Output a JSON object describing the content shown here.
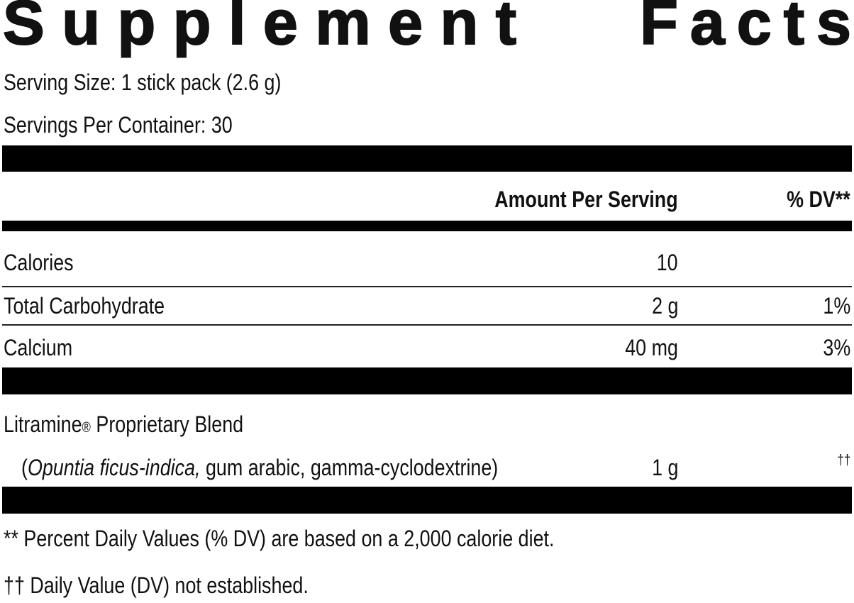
{
  "title": {
    "word1": "Supplement",
    "word2": "Facts"
  },
  "serving_size": "Serving Size: 1 stick pack (2.6 g)",
  "servings_per_container": "Servings Per Container: 30",
  "header": {
    "amount": "Amount Per Serving",
    "dv": "% DV**"
  },
  "rows": [
    {
      "name": "Calories",
      "amount": "10",
      "dv": ""
    },
    {
      "name": "Total Carbohydrate",
      "amount": "2 g",
      "dv": "1%"
    },
    {
      "name": "Calcium",
      "amount": "40 mg",
      "dv": "3%"
    }
  ],
  "blend": {
    "name": "Litramine",
    "reg": "®",
    "name_suffix": " Proprietary Blend",
    "open": "(",
    "italic": "Opuntia ficus-indica,",
    "rest": " gum arabic, gamma-cyclodextrine)",
    "amount": "1 g",
    "dv": "††"
  },
  "footnotes": [
    "** Percent Daily Values (% DV) are based on a 2,000 calorie diet.",
    "†† Daily Value (DV) not established."
  ]
}
